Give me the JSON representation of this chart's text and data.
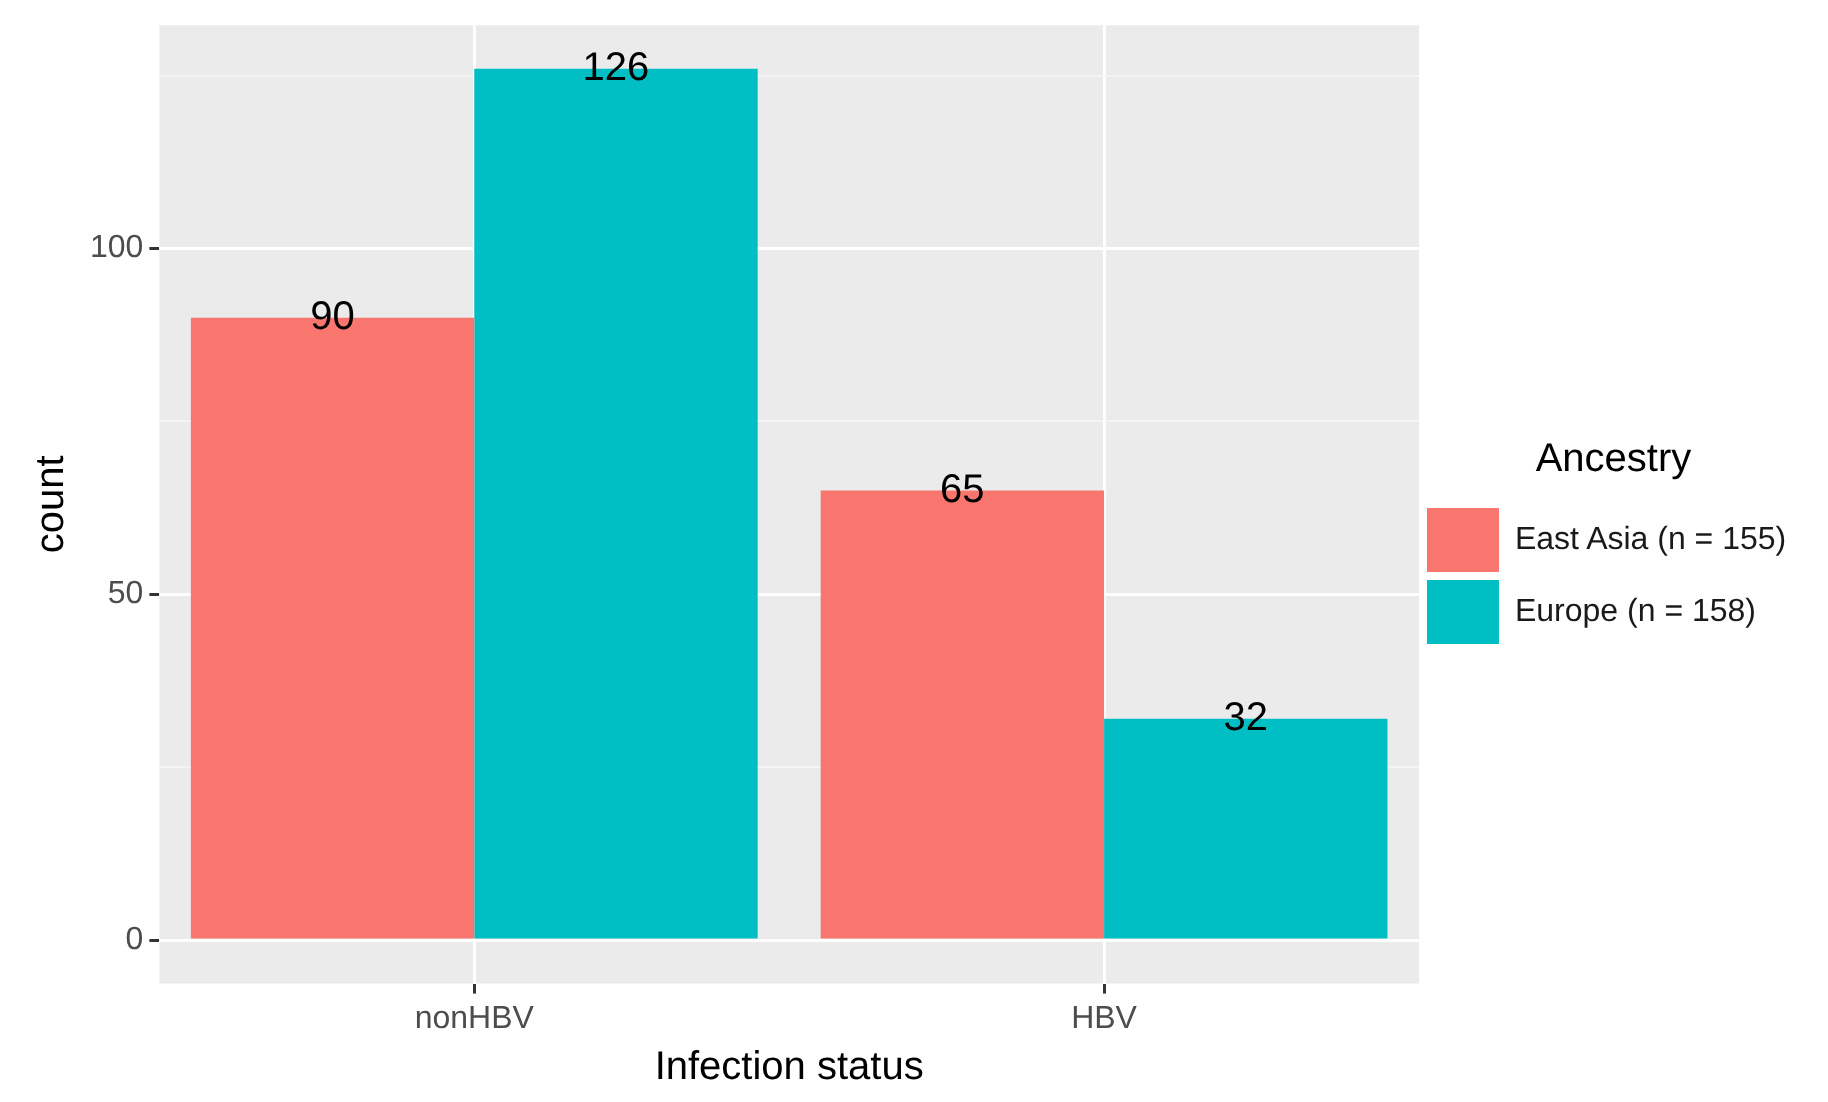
{
  "chart_data": {
    "type": "bar",
    "xlabel": "Infection status",
    "ylabel": "count",
    "legend_title": "Ancestry",
    "categories": [
      "nonHBV",
      "HBV"
    ],
    "series": [
      {
        "name": "East Asia (n = 155)",
        "color": "#f8766d",
        "values": [
          90,
          65
        ]
      },
      {
        "name": "Europe (n = 158)",
        "color": "#00bfc4",
        "values": [
          126,
          32
        ]
      }
    ],
    "ylim": [
      -6.3,
      132.3
    ],
    "yticks": [
      0,
      {
        "value": 25,
        "label": null
      },
      50,
      {
        "value": 75,
        "label": null
      },
      100,
      {
        "value": 125,
        "label": null
      }
    ],
    "grid": true,
    "legend": "right",
    "data_labels": true
  }
}
